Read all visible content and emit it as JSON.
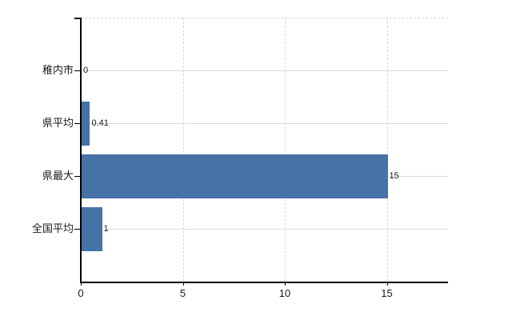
{
  "chart_data": {
    "type": "bar",
    "orientation": "horizontal",
    "categories": [
      "稚内市",
      "県平均",
      "県最大",
      "全国平均"
    ],
    "values": [
      0,
      0.41,
      15,
      1
    ],
    "value_labels": [
      "0",
      "0.41",
      "15",
      "1"
    ],
    "xticks": [
      0,
      5,
      10,
      15
    ],
    "xtick_labels": [
      "0",
      "5",
      "10",
      "15"
    ],
    "xlim": [
      0,
      18
    ],
    "title": "",
    "xlabel": "",
    "ylabel": "",
    "legend": "none",
    "grid": {
      "vertical": "dashed",
      "horizontal": "solid"
    },
    "colors": {
      "bar": "#4572a7",
      "gridline": "#d8d8d8",
      "axis": "#000000",
      "text": "#1a1a1a",
      "background": "#ffffff"
    }
  }
}
